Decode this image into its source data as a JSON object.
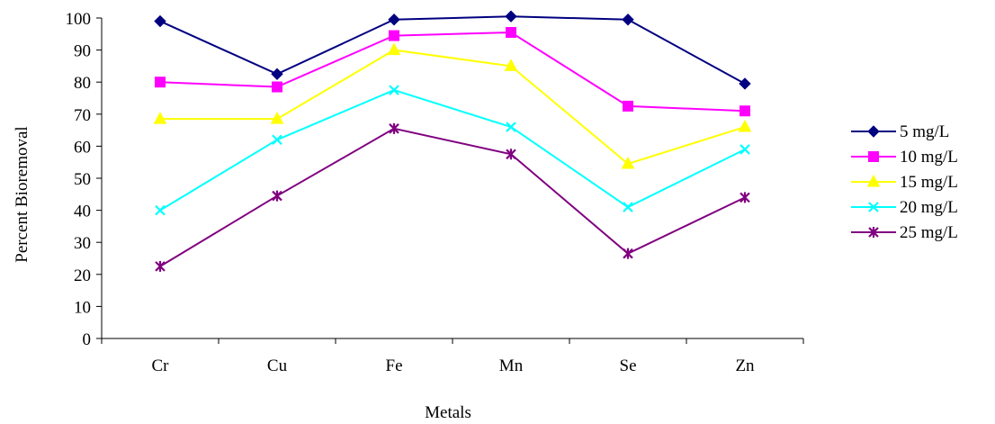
{
  "chart_data": {
    "type": "line",
    "title": "",
    "xlabel": "Metals",
    "ylabel": "Percent Bioremoval",
    "categories": [
      "Cr",
      "Cu",
      "Fe",
      "Mn",
      "Se",
      "Zn"
    ],
    "ylim": [
      0,
      100
    ],
    "yticks": [
      0,
      10,
      20,
      30,
      40,
      50,
      60,
      70,
      80,
      90,
      100
    ],
    "grid": false,
    "legend_position": "right",
    "series": [
      {
        "name": "5 mg/L",
        "color": "#000080",
        "marker": "diamond",
        "values": [
          99,
          82.5,
          99.5,
          100.5,
          99.5,
          79.5
        ]
      },
      {
        "name": "10 mg/L",
        "color": "#ff00ff",
        "marker": "square",
        "values": [
          80,
          78.5,
          94.5,
          95.5,
          72.5,
          71
        ]
      },
      {
        "name": "15 mg/L",
        "color": "#ffff00",
        "marker": "triangle",
        "values": [
          68.5,
          68.5,
          90,
          85,
          54.5,
          66
        ]
      },
      {
        "name": "20 mg/L",
        "color": "#00ffff",
        "marker": "x",
        "values": [
          40,
          62,
          77.5,
          66,
          41,
          59
        ]
      },
      {
        "name": "25 mg/L",
        "color": "#800080",
        "marker": "star",
        "values": [
          22.5,
          44.5,
          65.5,
          57.5,
          26.5,
          44
        ]
      }
    ]
  }
}
